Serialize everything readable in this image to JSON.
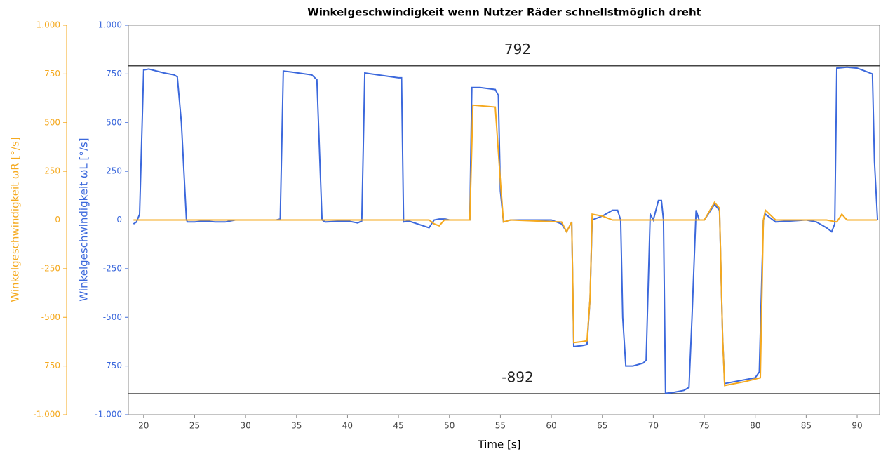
{
  "chart_data": {
    "type": "line",
    "title": "Winkelgeschwindigkeit wenn Nutzer Räder schnellstmöglich dreht",
    "x_label": "Time [s]",
    "y_label": "Winkelgeschwindigkeit ωL [°/s]",
    "y2_label": "Winkelgeschwindigkeit ωR [°/s]",
    "xlim": [
      18.5,
      92.2
    ],
    "xticks": [
      20,
      25,
      30,
      35,
      40,
      45,
      50,
      55,
      60,
      65,
      70,
      75,
      80,
      85,
      90
    ],
    "ylim": [
      -1000,
      1000
    ],
    "yticks": [
      {
        "value": -1000,
        "label": "-1.000"
      },
      -750,
      -500,
      -250,
      0,
      250,
      500,
      750,
      {
        "value": 1000,
        "label": "1.000"
      }
    ],
    "y2lim": [
      -1000,
      1000
    ],
    "y2ticks": [
      {
        "value": -1000,
        "label": "-1.000"
      },
      -750,
      -500,
      -250,
      0,
      250,
      500,
      750,
      {
        "value": 1000,
        "label": "1.000"
      }
    ],
    "hlines": [
      792,
      -892
    ],
    "series": [
      {
        "name": "ωL",
        "color": "#3b68dc",
        "x": [
          19,
          19.3,
          19.6,
          20,
          20.5,
          22,
          23,
          23.3,
          23.7,
          24.2,
          24.3,
          25,
          26,
          27,
          28,
          29,
          33,
          33.4,
          33.7,
          34.5,
          36.5,
          37,
          37.5,
          37.8,
          40,
          41,
          41.4,
          41.7,
          43,
          45,
          45.3,
          45.5,
          46,
          48,
          48.5,
          49,
          49.6,
          50,
          51.5,
          52,
          52.2,
          53,
          54.5,
          54.8,
          55,
          55.3,
          56,
          60,
          61,
          61.5,
          62,
          62.2,
          63,
          63.5,
          63.8,
          64,
          65,
          66,
          66.5,
          66.8,
          67,
          67.3,
          68,
          69,
          69.3,
          69.7,
          70,
          70.5,
          70.8,
          71,
          71.2,
          72,
          73,
          73.5,
          73.8,
          74.2,
          74.5,
          75,
          76,
          76.5,
          76.8,
          77,
          78,
          80,
          80.4,
          80.8,
          81,
          82,
          85,
          86,
          87,
          87.5,
          87.8,
          88,
          89,
          90,
          91,
          91.5,
          91.7,
          92
        ],
        "values": [
          -20,
          -10,
          30,
          770,
          775,
          755,
          745,
          735,
          500,
          0,
          -10,
          -10,
          -5,
          -10,
          -10,
          0,
          0,
          5,
          765,
          760,
          745,
          720,
          0,
          -10,
          -5,
          -15,
          -5,
          755,
          745,
          730,
          730,
          -10,
          -5,
          -40,
          0,
          5,
          5,
          0,
          0,
          0,
          680,
          680,
          670,
          640,
          150,
          -10,
          0,
          0,
          -20,
          -60,
          -10,
          -650,
          -645,
          -640,
          -400,
          0,
          20,
          50,
          50,
          0,
          -500,
          -750,
          -750,
          -735,
          -720,
          30,
          0,
          100,
          100,
          0,
          -890,
          -885,
          -875,
          -860,
          -500,
          50,
          0,
          0,
          80,
          50,
          -600,
          -840,
          -830,
          -810,
          -780,
          0,
          30,
          -10,
          0,
          -10,
          -40,
          -60,
          -20,
          780,
          785,
          780,
          760,
          750,
          300,
          0
        ]
      },
      {
        "name": "ωR",
        "color": "#f5a91e",
        "axis": "y2",
        "x": [
          19,
          48,
          48.5,
          49,
          49.5,
          51.5,
          52,
          52.3,
          54.5,
          55,
          55.3,
          56,
          61,
          61.5,
          62,
          62.2,
          63,
          63.5,
          63.8,
          64,
          65,
          66,
          75,
          76,
          76.5,
          76.8,
          77,
          79,
          80.5,
          80.8,
          81,
          82,
          87,
          88,
          88.5,
          89,
          92
        ],
        "values": [
          0,
          0,
          -20,
          -30,
          0,
          0,
          0,
          590,
          580,
          200,
          -10,
          0,
          -10,
          -60,
          -10,
          -630,
          -625,
          -620,
          -400,
          30,
          20,
          0,
          0,
          90,
          60,
          -600,
          -850,
          -830,
          -810,
          0,
          50,
          0,
          0,
          -10,
          30,
          0,
          0
        ]
      }
    ]
  }
}
